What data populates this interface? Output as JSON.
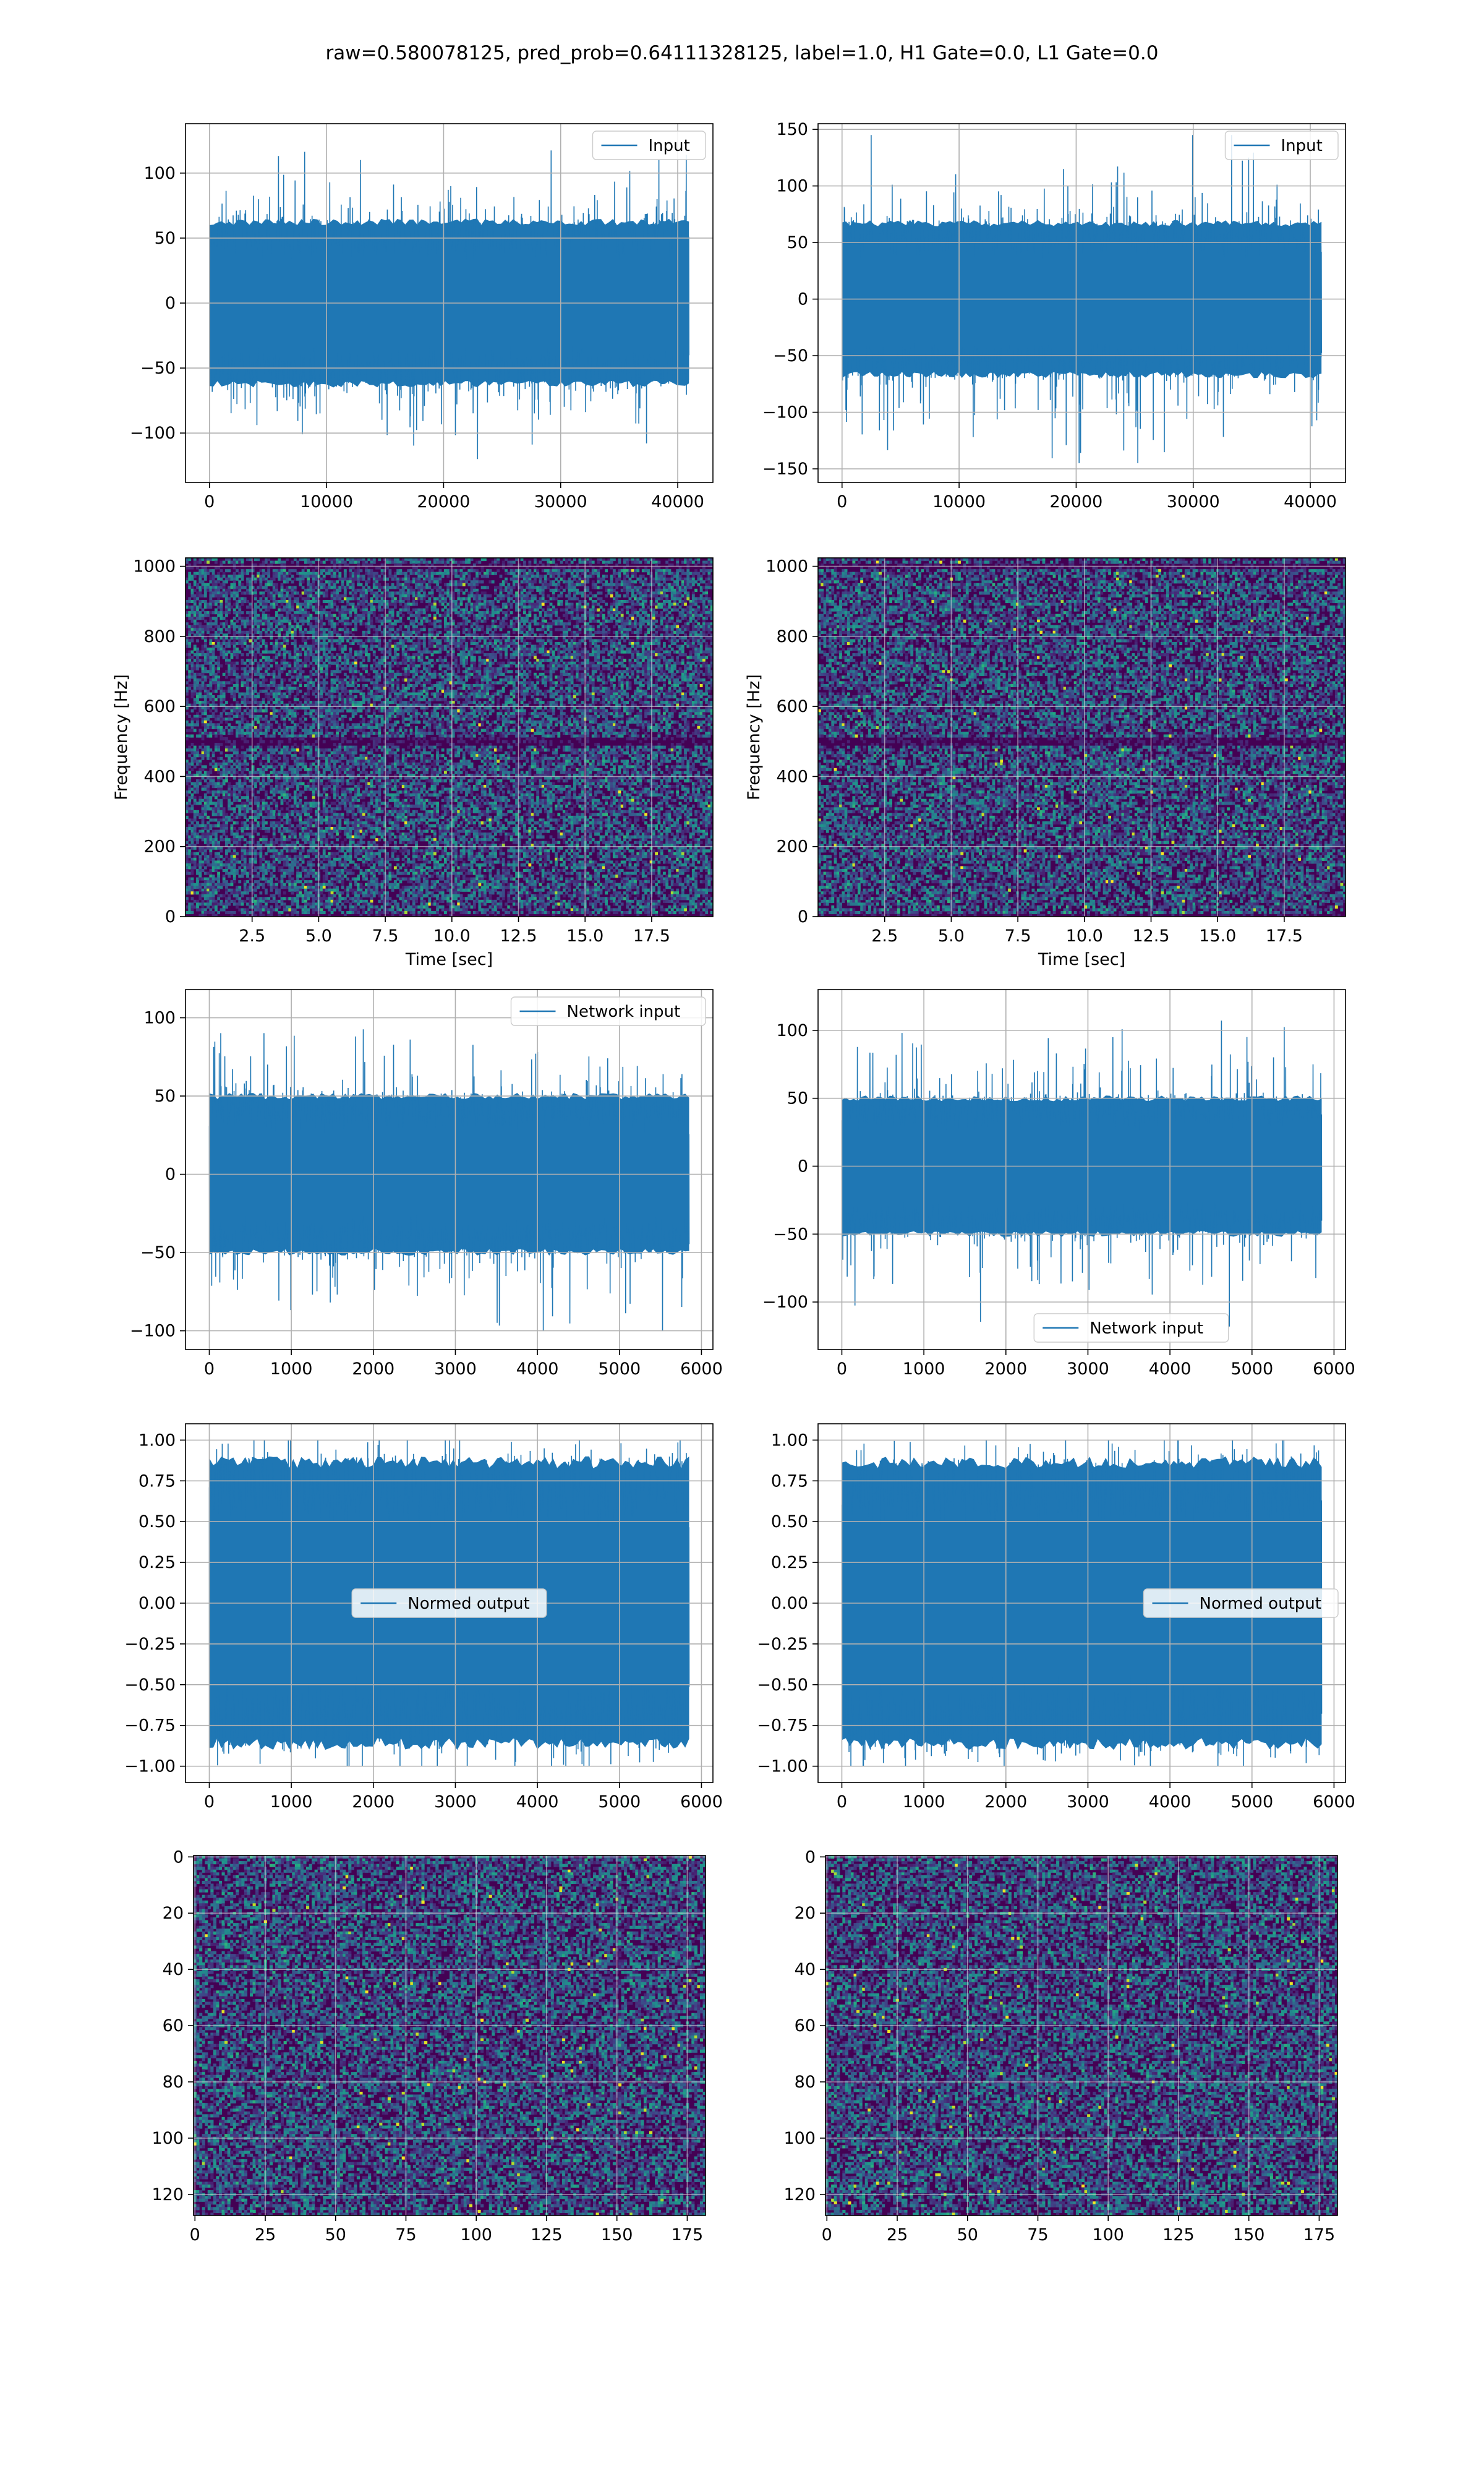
{
  "figure": {
    "suptitle": "raw=0.580078125, pred_prob=0.64111328125, label=1.0, H1 Gate=0.0, L1 Gate=0.0",
    "colors": {
      "line": "#1f77b4",
      "grid": "#b0b0b0",
      "axes": "#000000",
      "heatmap_low": "#440154",
      "heatmap_mid": "#3b528b",
      "heatmap_teal": "#21918c",
      "heatmap_green": "#5ec962",
      "heatmap_high": "#fde725"
    }
  },
  "chart_data": [
    {
      "id": "input-left",
      "type": "line",
      "series": [
        {
          "name": "Input",
          "x_range": [
            0,
            40960
          ],
          "envelope": [
            -120,
            120
          ],
          "typical": [
            -65,
            65
          ]
        }
      ],
      "xlim": [
        -2048,
        43008
      ],
      "ylim": [
        -138,
        138
      ],
      "xticks": [
        0,
        10000,
        20000,
        30000,
        40000
      ],
      "xtick_labels": [
        "0",
        "10000",
        "20000",
        "30000",
        "40000"
      ],
      "yticks": [
        -100,
        -50,
        0,
        50,
        100
      ],
      "ytick_labels": [
        "−100",
        "−50",
        "0",
        "50",
        "100"
      ],
      "legend": "upper-right",
      "grid": true,
      "xlabel": "",
      "ylabel": ""
    },
    {
      "id": "input-right",
      "type": "line",
      "series": [
        {
          "name": "Input",
          "x_range": [
            0,
            40960
          ],
          "envelope": [
            -145,
            145
          ],
          "typical": [
            -70,
            70
          ]
        }
      ],
      "xlim": [
        -2048,
        43008
      ],
      "ylim": [
        -162,
        155
      ],
      "xticks": [
        0,
        10000,
        20000,
        30000,
        40000
      ],
      "xtick_labels": [
        "0",
        "10000",
        "20000",
        "30000",
        "40000"
      ],
      "yticks": [
        -150,
        -100,
        -50,
        0,
        50,
        100,
        150
      ],
      "ytick_labels": [
        "−150",
        "−100",
        "−50",
        "0",
        "50",
        "100",
        "150"
      ],
      "legend": "upper-right",
      "grid": true,
      "xlabel": "",
      "ylabel": ""
    },
    {
      "id": "spectrogram-left",
      "type": "heatmap",
      "xlim": [
        0,
        19.8
      ],
      "ylim": [
        0,
        1024
      ],
      "xticks": [
        2.5,
        5.0,
        7.5,
        10.0,
        12.5,
        15.0,
        17.5
      ],
      "xtick_labels": [
        "2.5",
        "5.0",
        "7.5",
        "10.0",
        "12.5",
        "15.0",
        "17.5"
      ],
      "yticks": [
        0,
        200,
        400,
        600,
        800,
        1000
      ],
      "ytick_labels": [
        "0",
        "200",
        "400",
        "600",
        "800",
        "1000"
      ],
      "xlabel": "Time [sec]",
      "ylabel": "Frequency [Hz]",
      "grid": true,
      "colormap": "viridis",
      "dark_bands_hz": [
        0,
        500,
        1000
      ]
    },
    {
      "id": "spectrogram-right",
      "type": "heatmap",
      "xlim": [
        0,
        19.8
      ],
      "ylim": [
        0,
        1024
      ],
      "xticks": [
        2.5,
        5.0,
        7.5,
        10.0,
        12.5,
        15.0,
        17.5
      ],
      "xtick_labels": [
        "2.5",
        "5.0",
        "7.5",
        "10.0",
        "12.5",
        "15.0",
        "17.5"
      ],
      "yticks": [
        0,
        200,
        400,
        600,
        800,
        1000
      ],
      "ytick_labels": [
        "0",
        "200",
        "400",
        "600",
        "800",
        "1000"
      ],
      "xlabel": "Time [sec]",
      "ylabel": "Frequency [Hz]",
      "grid": true,
      "colormap": "viridis",
      "dark_bands_hz": [
        0,
        500,
        1000
      ]
    },
    {
      "id": "network-input-left",
      "type": "line",
      "series": [
        {
          "name": "Network input",
          "x_range": [
            0,
            5850
          ],
          "envelope": [
            -100,
            108
          ],
          "typical": [
            -52,
            52
          ]
        }
      ],
      "xlim": [
        -290,
        6140
      ],
      "ylim": [
        -112,
        118
      ],
      "xticks": [
        0,
        1000,
        2000,
        3000,
        4000,
        5000,
        6000
      ],
      "xtick_labels": [
        "0",
        "1000",
        "2000",
        "3000",
        "4000",
        "5000",
        "6000"
      ],
      "yticks": [
        -100,
        -50,
        0,
        50,
        100
      ],
      "ytick_labels": [
        "−100",
        "−50",
        "0",
        "50",
        "100"
      ],
      "legend": "upper-right",
      "grid": true,
      "xlabel": "",
      "ylabel": ""
    },
    {
      "id": "network-input-right",
      "type": "line",
      "series": [
        {
          "name": "Network input",
          "x_range": [
            0,
            5850
          ],
          "envelope": [
            -118,
            118
          ],
          "typical": [
            -52,
            52
          ]
        }
      ],
      "xlim": [
        -290,
        6140
      ],
      "ylim": [
        -135,
        130
      ],
      "xticks": [
        0,
        1000,
        2000,
        3000,
        4000,
        5000,
        6000
      ],
      "xtick_labels": [
        "0",
        "1000",
        "2000",
        "3000",
        "4000",
        "5000",
        "6000"
      ],
      "yticks": [
        -100,
        -50,
        0,
        50,
        100
      ],
      "ytick_labels": [
        "−100",
        "−50",
        "0",
        "50",
        "100"
      ],
      "legend": "lower-center",
      "grid": true,
      "xlabel": "",
      "ylabel": ""
    },
    {
      "id": "normed-output-left",
      "type": "line",
      "series": [
        {
          "name": "Normed output",
          "x_range": [
            0,
            5850
          ],
          "envelope": [
            -1.0,
            1.0
          ],
          "typical": [
            -0.9,
            0.9
          ]
        }
      ],
      "xlim": [
        -290,
        6140
      ],
      "ylim": [
        -1.1,
        1.1
      ],
      "xticks": [
        0,
        1000,
        2000,
        3000,
        4000,
        5000,
        6000
      ],
      "xtick_labels": [
        "0",
        "1000",
        "2000",
        "3000",
        "4000",
        "5000",
        "6000"
      ],
      "yticks": [
        -1.0,
        -0.75,
        -0.5,
        -0.25,
        0.0,
        0.25,
        0.5,
        0.75,
        1.0
      ],
      "ytick_labels": [
        "−1.00",
        "−0.75",
        "−0.50",
        "−0.25",
        "0.00",
        "0.25",
        "0.50",
        "0.75",
        "1.00"
      ],
      "legend": "center",
      "grid": true,
      "xlabel": "",
      "ylabel": ""
    },
    {
      "id": "normed-output-right",
      "type": "line",
      "series": [
        {
          "name": "Normed output",
          "x_range": [
            0,
            5850
          ],
          "envelope": [
            -1.0,
            1.0
          ],
          "typical": [
            -0.9,
            0.9
          ]
        }
      ],
      "xlim": [
        -290,
        6140
      ],
      "ylim": [
        -1.1,
        1.1
      ],
      "xticks": [
        0,
        1000,
        2000,
        3000,
        4000,
        5000,
        6000
      ],
      "xtick_labels": [
        "0",
        "1000",
        "2000",
        "3000",
        "4000",
        "5000",
        "6000"
      ],
      "yticks": [
        -1.0,
        -0.75,
        -0.5,
        -0.25,
        0.0,
        0.25,
        0.5,
        0.75,
        1.0
      ],
      "ytick_labels": [
        "−1.00",
        "−0.75",
        "−0.50",
        "−0.25",
        "0.00",
        "0.25",
        "0.50",
        "0.75",
        "1.00"
      ],
      "legend": "center-right",
      "grid": true,
      "xlabel": "",
      "ylabel": ""
    },
    {
      "id": "image-left",
      "type": "heatmap",
      "xlim": [
        -0.5,
        181.5
      ],
      "ylim": [
        127.5,
        -0.5
      ],
      "xticks": [
        0,
        25,
        50,
        75,
        100,
        125,
        150,
        175
      ],
      "xtick_labels": [
        "0",
        "25",
        "50",
        "75",
        "100",
        "125",
        "150",
        "175"
      ],
      "yticks": [
        0,
        20,
        40,
        60,
        80,
        100,
        120
      ],
      "ytick_labels": [
        "0",
        "20",
        "40",
        "60",
        "80",
        "100",
        "120"
      ],
      "xlabel": "",
      "ylabel": "",
      "grid": true,
      "colormap": "viridis",
      "shape": [
        128,
        182
      ]
    },
    {
      "id": "image-right",
      "type": "heatmap",
      "xlim": [
        -0.5,
        181.5
      ],
      "ylim": [
        127.5,
        -0.5
      ],
      "xticks": [
        0,
        25,
        50,
        75,
        100,
        125,
        150,
        175
      ],
      "xtick_labels": [
        "0",
        "25",
        "50",
        "75",
        "100",
        "125",
        "150",
        "175"
      ],
      "yticks": [
        0,
        20,
        40,
        60,
        80,
        100,
        120
      ],
      "ytick_labels": [
        "0",
        "20",
        "40",
        "60",
        "80",
        "100",
        "120"
      ],
      "xlabel": "",
      "ylabel": "",
      "grid": true,
      "colormap": "viridis",
      "shape": [
        128,
        182
      ]
    }
  ]
}
